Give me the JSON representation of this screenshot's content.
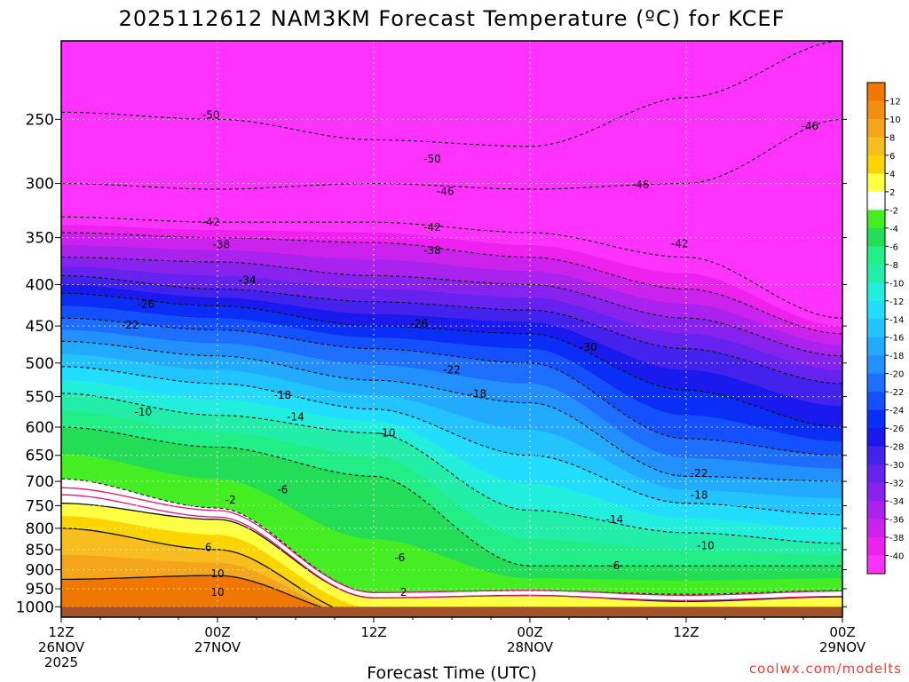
{
  "title": "2025112612 NAM3KM Forecast Temperature (ºC) for KCEF",
  "xlabel": "Forecast Time (UTC)",
  "credit": "coolwx.com/modelts",
  "chart_data": {
    "type": "heatmap",
    "title": "2025112612 NAM3KM Forecast Temperature (ºC) for KCEF",
    "xlabel": "Forecast Time (UTC)",
    "ylabel": "",
    "x_range_hours": [
      0,
      60
    ],
    "y_axis": "pressure (hPa), log scale, inverted",
    "y_range": [
      1030,
      200
    ],
    "x_ticks": [
      {
        "hour": 0,
        "line1": "12Z",
        "line2": "26NOV",
        "line3": "2025"
      },
      {
        "hour": 12,
        "line1": "00Z",
        "line2": "27NOV",
        "line3": ""
      },
      {
        "hour": 24,
        "line1": "12Z",
        "line2": "",
        "line3": ""
      },
      {
        "hour": 36,
        "line1": "00Z",
        "line2": "28NOV",
        "line3": ""
      },
      {
        "hour": 48,
        "line1": "12Z",
        "line2": "",
        "line3": ""
      },
      {
        "hour": 60,
        "line1": "00Z",
        "line2": "29NOV",
        "line3": ""
      }
    ],
    "y_ticks": [
      250,
      300,
      350,
      400,
      450,
      500,
      550,
      600,
      650,
      700,
      750,
      800,
      850,
      900,
      950,
      1000
    ],
    "surface_pressure": 1000,
    "grid": true,
    "legend_position": "right",
    "colorbar": {
      "labels": [
        "12",
        "10",
        "8",
        "6",
        "4",
        "2",
        "-2",
        "-4",
        "-6",
        "-8",
        "-10",
        "-12",
        "-14",
        "-16",
        "-18",
        "-20",
        "-22",
        "-24",
        "-26",
        "-28",
        "-30",
        "-32",
        "-34",
        "-36",
        "-38",
        "-40"
      ],
      "colors": [
        "#f07800",
        "#f28e10",
        "#f5a51c",
        "#f8bd1e",
        "#fcd400",
        "#ffff44",
        "#ffffff",
        "#44ee22",
        "#22dd55",
        "#22ee88",
        "#22eeaa",
        "#22eedd",
        "#22ddff",
        "#22c4ff",
        "#22aaff",
        "#2290ff",
        "#1e6eff",
        "#1450ff",
        "#0a2ef5",
        "#1a1aee",
        "#4422ee",
        "#6622ee",
        "#8822ee",
        "#aa22ee",
        "#cc22ee",
        "#ee22ee",
        "#ff33ff"
      ]
    },
    "sample_columns": [
      {
        "hour": 0,
        "iso": {
          "-50": 245,
          "-46": 300,
          "-42": 330,
          "-38": 345,
          "-34": 370,
          "-30": 390,
          "-26": 410,
          "-22": 440,
          "-18": 470,
          "-14": 505,
          "-10": 545,
          "-6": 600,
          "-2": 695,
          "2": 745,
          "6": 800,
          "10": 925
        }
      },
      {
        "hour": 12,
        "iso": {
          "-50": 250,
          "-46": 305,
          "-42": 335,
          "-38": 350,
          "-34": 375,
          "-30": 405,
          "-26": 425,
          "-22": 455,
          "-18": 490,
          "-14": 530,
          "-10": 580,
          "-6": 635,
          "-2": 755,
          "2": 780,
          "6": 850,
          "10": 915
        }
      },
      {
        "hour": 24,
        "iso": {
          "-50": 265,
          "-46": 300,
          "-42": 335,
          "-38": 355,
          "-34": 390,
          "-30": 420,
          "-26": 450,
          "-22": 480,
          "-18": 525,
          "-14": 570,
          "-10": 610,
          "-6": 690,
          "-2": 960,
          "2": 975
        }
      },
      {
        "hour": 36,
        "iso": {
          "-50": 270,
          "-46": 305,
          "-42": 345,
          "-38": 370,
          "-34": 400,
          "-30": 430,
          "-26": 460,
          "-22": 500,
          "-18": 560,
          "-14": 650,
          "-10": 760,
          "-6": 890,
          "-2": 955,
          "2": 968
        }
      },
      {
        "hour": 48,
        "iso": {
          "-50": 235,
          "-46": 300,
          "-42": 370,
          "-38": 405,
          "-34": 440,
          "-30": 480,
          "-26": 540,
          "-22": 620,
          "-18": 690,
          "-14": 745,
          "-10": 810,
          "-6": 890,
          "-2": 965,
          "2": 985
        }
      },
      {
        "hour": 60,
        "iso": {
          "-50": 200,
          "-46": 250,
          "-42": 440,
          "-38": 460,
          "-34": 490,
          "-30": 530,
          "-26": 600,
          "-22": 650,
          "-18": 700,
          "-14": 770,
          "-10": 835,
          "-6": 890,
          "-2": 955,
          "2": 972
        }
      }
    ],
    "contour_labels": [
      {
        "text": "-50",
        "hour": 11.5,
        "p": 247
      },
      {
        "text": "-50",
        "hour": 28.5,
        "p": 280
      },
      {
        "text": "-46",
        "hour": 29.5,
        "p": 307
      },
      {
        "text": "-46",
        "hour": 44.5,
        "p": 301
      },
      {
        "text": "-46",
        "hour": 57.5,
        "p": 255
      },
      {
        "text": "-42",
        "hour": 11.5,
        "p": 335
      },
      {
        "text": "-42",
        "hour": 28.5,
        "p": 340
      },
      {
        "text": "-42",
        "hour": 47.5,
        "p": 356
      },
      {
        "text": "-38",
        "hour": 12.3,
        "p": 357
      },
      {
        "text": "-38",
        "hour": 28.5,
        "p": 363
      },
      {
        "text": "-34",
        "hour": 14.3,
        "p": 395
      },
      {
        "text": "-30",
        "hour": 40.5,
        "p": 478
      },
      {
        "text": "-26",
        "hour": 6.5,
        "p": 423
      },
      {
        "text": "-26",
        "hour": 27.5,
        "p": 447
      },
      {
        "text": "-22",
        "hour": 5.3,
        "p": 449
      },
      {
        "text": "-22",
        "hour": 30.0,
        "p": 510
      },
      {
        "text": "-22",
        "hour": 49.0,
        "p": 684
      },
      {
        "text": "-18",
        "hour": 17.0,
        "p": 548
      },
      {
        "text": "-18",
        "hour": 32.0,
        "p": 546
      },
      {
        "text": "-18",
        "hour": 49.0,
        "p": 728
      },
      {
        "text": "-14",
        "hour": 18.0,
        "p": 583
      },
      {
        "text": "-14",
        "hour": 42.5,
        "p": 780
      },
      {
        "text": "-10",
        "hour": 6.3,
        "p": 575
      },
      {
        "text": "-10",
        "hour": 25.0,
        "p": 610
      },
      {
        "text": "-10",
        "hour": 49.5,
        "p": 840
      },
      {
        "text": "-6",
        "hour": 17.0,
        "p": 717
      },
      {
        "text": "-6",
        "hour": 26.0,
        "p": 870
      },
      {
        "text": "-6",
        "hour": 42.5,
        "p": 890
      },
      {
        "text": "-2",
        "hour": 13.0,
        "p": 738
      },
      {
        "text": "2",
        "hour": 26.3,
        "p": 960
      },
      {
        "text": "6",
        "hour": 11.3,
        "p": 845
      },
      {
        "text": "10",
        "hour": 12.0,
        "p": 910
      },
      {
        "text": "10",
        "hour": 12.0,
        "p": 960
      }
    ]
  }
}
